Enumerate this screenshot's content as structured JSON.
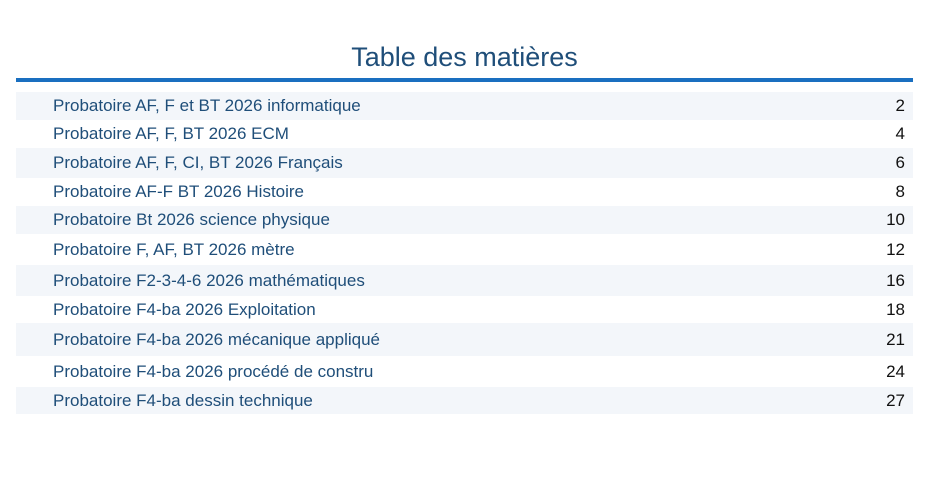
{
  "toc": {
    "title": "Table des matières",
    "entries": [
      {
        "label": "Probatoire AF, F et BT 2026 informatique",
        "page": "2"
      },
      {
        "label": "Probatoire AF, F, BT 2026 ECM",
        "page": "4"
      },
      {
        "label": "Probatoire AF, F, CI, BT 2026 Français",
        "page": "6"
      },
      {
        "label": "Probatoire AF-F BT 2026 Histoire",
        "page": "8"
      },
      {
        "label": "Probatoire Bt 2026 science physique",
        "page": "10"
      },
      {
        "label": "Probatoire F, AF, BT 2026 mètre",
        "page": "12"
      },
      {
        "label": "Probatoire F2-3-4-6 2026 mathématiques",
        "page": "16"
      },
      {
        "label": "Probatoire F4-ba 2026 Exploitation",
        "page": "18"
      },
      {
        "label": "Probatoire F4-ba 2026 mécanique appliqué",
        "page": "21"
      },
      {
        "label": "Probatoire F4-ba 2026 procédé de constru",
        "page": "24"
      },
      {
        "label": "Probatoire F4-ba dessin technique",
        "page": "27"
      }
    ]
  }
}
